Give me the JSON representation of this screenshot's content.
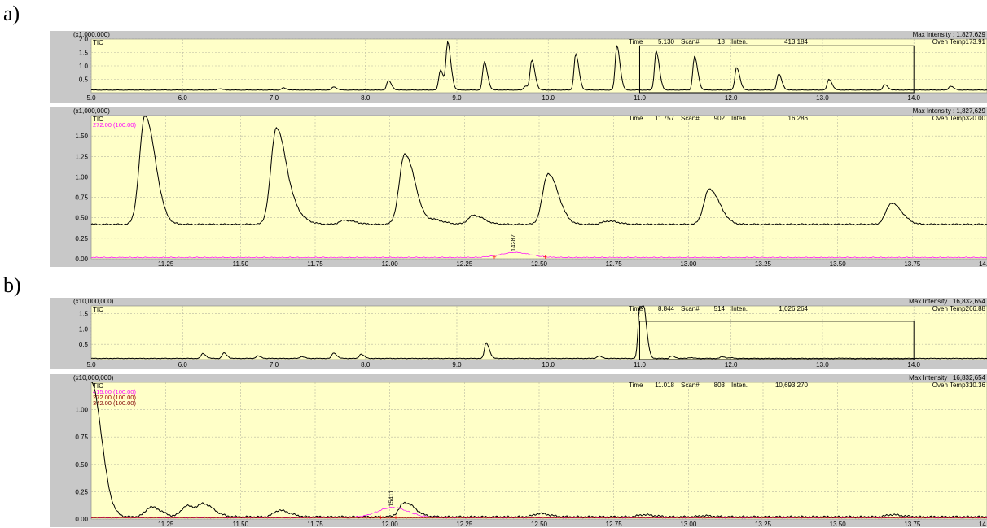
{
  "panel_labels": [
    "a)",
    "b)"
  ],
  "colors": {
    "plot_bg": "#ffffc8",
    "frame_bg": "#c8c8c8",
    "grid": "#b8b8a0",
    "tic": "#000000",
    "magenta": "#ff00ff",
    "dark_red": "#a00000",
    "marker": "#ff0000"
  },
  "chart_data": [
    {
      "id": "a-top",
      "type": "line",
      "scale_label": "(x1,000,000)",
      "trace_label": "TIC",
      "max_intensity": "Max Intensity : 1,827,629",
      "status": {
        "time_label": "Time",
        "time": "5.130",
        "scan_label": "Scan#",
        "scan": "18",
        "inten_label": "Inten.",
        "inten": "413,184",
        "oven": "Oven Temp173.91"
      },
      "xlim": [
        5.0,
        14.8
      ],
      "ylim": [
        0,
        2.0
      ],
      "xticks": [
        5.0,
        6.0,
        7.0,
        8.0,
        9.0,
        10.0,
        11.0,
        12.0,
        13.0,
        14.0
      ],
      "xtick_labels": [
        "5.0",
        "6.0",
        "7.0",
        "8.0",
        "9.0",
        "10.0",
        "11.0",
        "12.0",
        "13.0",
        "14.0"
      ],
      "yticks": [
        0.5,
        1.0,
        1.5,
        2.0
      ],
      "ytick_labels": [
        "0.5",
        "1.0",
        "1.5",
        "2.0"
      ],
      "baseline": 0.1,
      "selection_box": {
        "x0": 11.0,
        "x1": 14.0
      },
      "peaks": [
        [
          6.4,
          0.15
        ],
        [
          7.1,
          0.18
        ],
        [
          7.65,
          0.22
        ],
        [
          8.25,
          0.45
        ],
        [
          8.82,
          0.85
        ],
        [
          8.9,
          1.85
        ],
        [
          9.3,
          1.15
        ],
        [
          9.75,
          0.25
        ],
        [
          9.82,
          1.2
        ],
        [
          10.3,
          1.45
        ],
        [
          10.75,
          1.75
        ],
        [
          11.18,
          1.55
        ],
        [
          11.6,
          1.35
        ],
        [
          12.06,
          0.95
        ],
        [
          12.52,
          0.7
        ],
        [
          13.07,
          0.5
        ],
        [
          13.68,
          0.3
        ],
        [
          14.4,
          0.25
        ]
      ],
      "series": [
        {
          "values": "TIC"
        }
      ]
    },
    {
      "id": "a-bottom",
      "type": "line",
      "scale_label": "(x1,000,000)",
      "trace_label": "TIC",
      "ion_labels": [
        "272.00 (100.00)"
      ],
      "max_intensity": "Max Intensity : 1,827,629",
      "status": {
        "time_label": "Time",
        "time": "11.757",
        "scan_label": "Scan#",
        "scan": "902",
        "inten_label": "Inten.",
        "inten": "16,286",
        "oven": "Oven Temp320.00"
      },
      "xlim": [
        11.0,
        14.0
      ],
      "ylim": [
        0,
        1.75
      ],
      "xticks": [
        11.25,
        11.5,
        11.75,
        12.0,
        12.25,
        12.5,
        12.75,
        13.0,
        13.25,
        13.5,
        13.75,
        14.0
      ],
      "xtick_labels": [
        "11.25",
        "11.50",
        "11.75",
        "12.00",
        "12.25",
        "12.50",
        "12.75",
        "13.00",
        "13.25",
        "13.50",
        "13.75",
        "14.00"
      ],
      "yticks": [
        0.0,
        0.25,
        0.5,
        0.75,
        1.0,
        1.25,
        1.5
      ],
      "ytick_labels": [
        "0.00",
        "0.25",
        "0.50",
        "0.75",
        "1.00",
        "1.25",
        "1.50"
      ],
      "baseline": 0.42,
      "peaks": [
        [
          11.18,
          1.75
        ],
        [
          11.62,
          1.6
        ],
        [
          11.69,
          0.5
        ],
        [
          11.85,
          0.47
        ],
        [
          12.05,
          1.28
        ],
        [
          12.15,
          0.47
        ],
        [
          12.28,
          0.53
        ],
        [
          12.53,
          1.04
        ],
        [
          12.73,
          0.46
        ],
        [
          13.07,
          0.85
        ],
        [
          13.68,
          0.68
        ]
      ],
      "annotation": {
        "text": "14287",
        "x": 12.42,
        "y": 0.06
      },
      "integration_markers": [
        12.35,
        12.52
      ]
    },
    {
      "id": "b-top",
      "type": "line",
      "scale_label": "(x10,000,000)",
      "trace_label": "TIC",
      "max_intensity": "Max Intensity : 16,832,654",
      "status": {
        "time_label": "Time",
        "time": "8.844",
        "scan_label": "Scan#",
        "scan": "514",
        "inten_label": "Inten.",
        "inten": "1,026,264",
        "oven": "Oven Temp266.88"
      },
      "xlim": [
        5.0,
        14.8
      ],
      "ylim": [
        0,
        1.75
      ],
      "xticks": [
        5.0,
        6.0,
        7.0,
        8.0,
        9.0,
        10.0,
        11.0,
        12.0,
        13.0,
        14.0
      ],
      "xtick_labels": [
        "5.0",
        "6.0",
        "7.0",
        "8.0",
        "9.0",
        "10.0",
        "11.0",
        "12.0",
        "13.0",
        "14.0"
      ],
      "yticks": [
        0.5,
        1.0,
        1.5
      ],
      "ytick_labels": [
        "0.5",
        "1.0",
        "1.5"
      ],
      "baseline": 0.04,
      "selection_box": {
        "x0": 11.0,
        "x1": 14.0
      },
      "peaks": [
        [
          6.22,
          0.2
        ],
        [
          6.45,
          0.22
        ],
        [
          6.82,
          0.12
        ],
        [
          7.3,
          0.1
        ],
        [
          7.65,
          0.22
        ],
        [
          7.95,
          0.18
        ],
        [
          9.32,
          0.55
        ],
        [
          10.55,
          0.12
        ],
        [
          11.0,
          1.7
        ],
        [
          11.05,
          1.2
        ],
        [
          11.35,
          0.12
        ],
        [
          11.55,
          0.07
        ],
        [
          11.9,
          0.1
        ],
        [
          12.0,
          0.06
        ],
        [
          13.2,
          0.05
        ]
      ]
    },
    {
      "id": "b-bottom",
      "type": "line",
      "scale_label": "(x10,000,000)",
      "trace_label": "TIC",
      "ion_labels": [
        "415.00 (100.00)",
        "272.00 (100.00)",
        "342.00 (100.00)"
      ],
      "max_intensity": "Max Intensity : 16,832,654",
      "status": {
        "time_label": "Time",
        "time": "11.018",
        "scan_label": "Scan#",
        "scan": "803",
        "inten_label": "Inten.",
        "inten": "10,693,270",
        "oven": "Oven Temp310.36"
      },
      "xlim": [
        11.0,
        14.0
      ],
      "ylim": [
        0,
        1.25
      ],
      "xticks": [
        11.25,
        11.5,
        11.75,
        12.0,
        12.25,
        12.5,
        12.75,
        13.0,
        13.25,
        13.5,
        13.75,
        14.0
      ],
      "xtick_labels": [
        "11.25",
        "11.50",
        "11.75",
        "12.00",
        "12.25",
        "12.50",
        "12.75",
        "13.00",
        "13.25",
        "13.50",
        "13.75",
        "14.00"
      ],
      "yticks": [
        0.0,
        0.25,
        0.5,
        0.75,
        1.0
      ],
      "ytick_labels": [
        "0.00",
        "0.25",
        "0.50",
        "0.75",
        "1.00"
      ],
      "baseline": 0.02,
      "peaks": [
        [
          11.0,
          1.25
        ],
        [
          11.2,
          0.11
        ],
        [
          11.32,
          0.12
        ],
        [
          11.38,
          0.12
        ],
        [
          11.63,
          0.08
        ],
        [
          12.05,
          0.15
        ],
        [
          12.5,
          0.05
        ],
        [
          12.85,
          0.04
        ],
        [
          13.05,
          0.03
        ],
        [
          13.68,
          0.04
        ]
      ],
      "annotation": {
        "text": "15411",
        "x": 12.01,
        "y": 0.09
      },
      "integration_markers": [
        11.97,
        12.02
      ]
    }
  ]
}
